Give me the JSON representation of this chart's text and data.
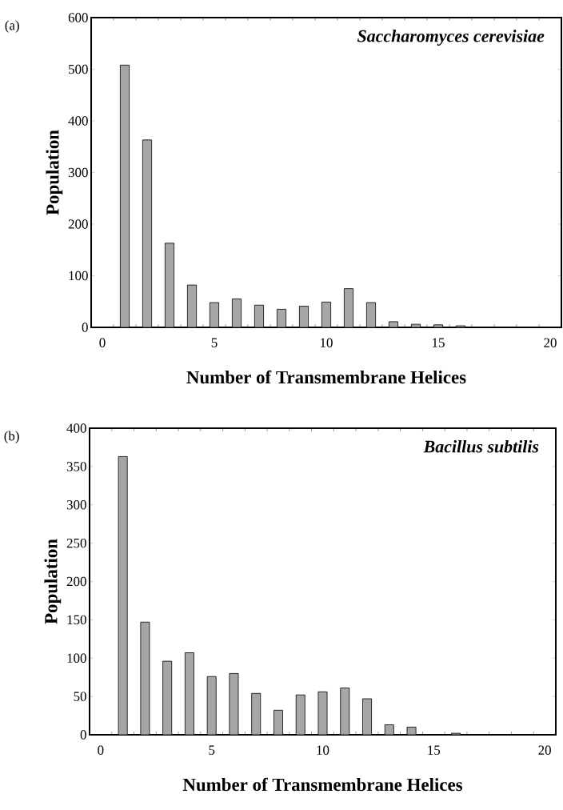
{
  "chart_data": [
    {
      "type": "bar",
      "x": [
        1,
        2,
        3,
        4,
        5,
        6,
        7,
        8,
        9,
        10,
        11,
        12,
        13,
        14,
        15,
        16
      ],
      "values": [
        508,
        363,
        163,
        82,
        48,
        55,
        43,
        35,
        41,
        49,
        75,
        48,
        11,
        6,
        5,
        3
      ],
      "color": "#a6a6a6",
      "xlabel": "Number of Transmembrane Helices",
      "ylabel": "Population",
      "xlim": [
        -0.5,
        20.5
      ],
      "xticks": [
        0,
        5,
        10,
        15,
        20
      ],
      "ylim": [
        0,
        600
      ],
      "yticks": [
        0,
        100,
        200,
        300,
        400,
        500,
        600
      ],
      "annotations": [
        "(a)",
        "Saccharomyces cerevisiae"
      ]
    },
    {
      "type": "bar",
      "x": [
        1,
        2,
        3,
        4,
        5,
        6,
        7,
        8,
        9,
        10,
        11,
        12,
        13,
        14,
        15,
        16
      ],
      "values": [
        363,
        147,
        96,
        107,
        76,
        80,
        54,
        32,
        52,
        56,
        61,
        47,
        13,
        10,
        null,
        2
      ],
      "color": "#a6a6a6",
      "xlabel": "Number of Transmembrane Helices",
      "ylabel": "Population",
      "xlim": [
        -0.5,
        20.5
      ],
      "xticks": [
        0,
        5,
        10,
        15,
        20
      ],
      "ylim": [
        0,
        400
      ],
      "yticks": [
        0,
        50,
        100,
        150,
        200,
        250,
        300,
        350,
        400
      ],
      "annotations": [
        "(b)",
        "Bacillus subtilis"
      ]
    }
  ]
}
